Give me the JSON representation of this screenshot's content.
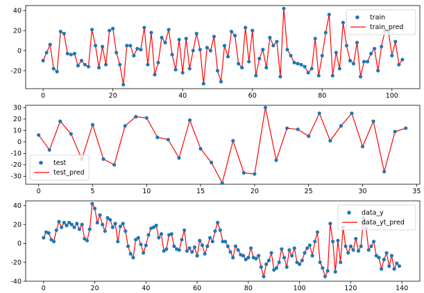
{
  "chart_data": [
    {
      "type": "scatter+line",
      "x_start": 0,
      "xlim": [
        -5,
        108
      ],
      "ylim": [
        -38,
        45
      ],
      "xticks": [
        0,
        20,
        40,
        60,
        80,
        100
      ],
      "yticks": [
        -20,
        0,
        20,
        40
      ],
      "legend_position": "top-right",
      "point_color": "#1f77b4",
      "line_color": "#ff0000",
      "series": [
        {
          "name": "train",
          "kind": "points"
        },
        {
          "name": "train_pred",
          "kind": "line"
        }
      ],
      "y": [
        -10,
        -2,
        6,
        -18,
        -21,
        19,
        17,
        -3,
        -4,
        -3,
        -15,
        -10,
        -14,
        -16,
        21,
        5,
        -17,
        4,
        -14,
        20,
        22,
        -2,
        -14,
        -34,
        5,
        5,
        -5,
        2,
        1,
        23,
        -14,
        18,
        -24,
        -12,
        13,
        8,
        21,
        -4,
        -19,
        11,
        -22,
        12,
        -18,
        0,
        17,
        1,
        -33,
        3,
        0,
        14,
        -20,
        -31,
        5,
        -6,
        19,
        15,
        -13,
        -17,
        23,
        -11,
        20,
        -25,
        -8,
        1,
        -17,
        13,
        5,
        9,
        -26,
        42,
        1,
        -5,
        -12,
        -13,
        -14,
        -16,
        -22,
        -18,
        12,
        -25,
        -5,
        18,
        36,
        -25,
        -2,
        -18,
        28,
        5,
        -10,
        -13,
        8,
        -26,
        -11,
        -11,
        -3,
        2,
        -20,
        4,
        20,
        19,
        -5,
        9,
        -14,
        -9
      ]
    },
    {
      "type": "scatter+line",
      "x_start": 0,
      "xlim": [
        -1.2,
        35.3
      ],
      "ylim": [
        -37,
        32
      ],
      "xticks": [
        0,
        5,
        10,
        15,
        20,
        25,
        30,
        35
      ],
      "yticks": [
        -30,
        -20,
        -10,
        0,
        10,
        20,
        30
      ],
      "legend_position": "bottom-left",
      "point_color": "#1f77b4",
      "line_color": "#ff0000",
      "series": [
        {
          "name": "test",
          "kind": "points"
        },
        {
          "name": "test_pred",
          "kind": "line"
        }
      ],
      "y": [
        6,
        -7,
        18,
        7,
        -15,
        15,
        -15,
        -20,
        14,
        22,
        21,
        4,
        2,
        -14,
        19,
        -6,
        -18,
        -36,
        1,
        -27,
        -28,
        30,
        -16,
        12,
        11,
        5,
        25,
        1,
        14,
        25,
        -4,
        18,
        -26,
        9,
        12
      ]
    },
    {
      "type": "scatter+line",
      "x_start": 0,
      "xlim": [
        -7,
        147
      ],
      "ylim": [
        -40,
        45
      ],
      "xticks": [
        0,
        20,
        40,
        60,
        80,
        100,
        120,
        140
      ],
      "yticks": [
        -40,
        -20,
        0,
        20,
        40
      ],
      "legend_position": "top-right",
      "point_color": "#1f77b4",
      "line_color": "#ff0000",
      "series": [
        {
          "name": "data_y",
          "kind": "points"
        },
        {
          "name": "data_yt_pred",
          "kind": "line"
        }
      ],
      "y": [
        6,
        12,
        11,
        4,
        2,
        14,
        23,
        17,
        22,
        19,
        22,
        20,
        17,
        21,
        15,
        20,
        5,
        3,
        15,
        42,
        37,
        22,
        30,
        20,
        13,
        27,
        25,
        17,
        21,
        2,
        18,
        21,
        13,
        -3,
        -11,
        -15,
        4,
        6,
        -1,
        -10,
        -2,
        9,
        16,
        17,
        19,
        6,
        10,
        -8,
        -6,
        9,
        10,
        -3,
        -6,
        -7,
        4,
        14,
        -8,
        -5,
        -9,
        -4,
        -13,
        3,
        -2,
        -11,
        -3,
        6,
        2,
        13,
        22,
        14,
        2,
        2,
        -3,
        -9,
        -15,
        -3,
        -7,
        -12,
        -13,
        -17,
        -15,
        -5,
        -15,
        -16,
        -13,
        -25,
        -35,
        -22,
        -18,
        -10,
        -28,
        -26,
        -20,
        -6,
        -15,
        -25,
        -7,
        -13,
        -5,
        -20,
        -22,
        -18,
        -10,
        -5,
        -2,
        -13,
        2,
        12,
        -20,
        -26,
        -35,
        -29,
        21,
        2,
        -30,
        3,
        -20,
        17,
        -3,
        -10,
        -3,
        -7,
        5,
        -8,
        -3,
        27,
        16,
        -7,
        -3,
        2,
        -13,
        -15,
        -27,
        -17,
        -10,
        -24,
        -13,
        -27,
        -21,
        -24
      ]
    }
  ]
}
